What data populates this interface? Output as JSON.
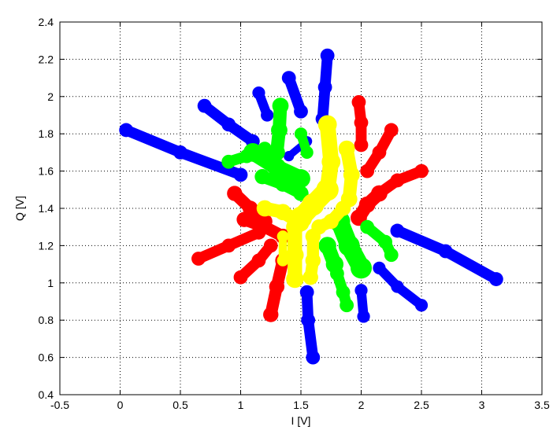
{
  "chart_data": {
    "type": "scatter",
    "title": "",
    "xlabel": "I [V]",
    "ylabel": "Q [V]",
    "xlim": [
      -0.5,
      3.5
    ],
    "ylim": [
      0.4,
      2.4
    ],
    "xticks": [
      -0.5,
      0,
      0.5,
      1,
      1.5,
      2,
      2.5,
      3,
      3.5
    ],
    "yticks": [
      0.4,
      0.6,
      0.8,
      1,
      1.2,
      1.4,
      1.6,
      1.8,
      2,
      2.2,
      2.4
    ],
    "xtick_labels": [
      "-0.5",
      "0",
      "0.5",
      "1",
      "1.5",
      "2",
      "2.5",
      "3",
      "3.5"
    ],
    "ytick_labels": [
      "0.4",
      "0.6",
      "0.8",
      "1",
      "1.2",
      "1.4",
      "1.6",
      "1.8",
      "2",
      "2.2",
      "2.4"
    ],
    "grid": true,
    "grid_style": "dotted",
    "series": [
      {
        "color": "#0000ff",
        "marker": "*",
        "strokes": [
          {
            "points": [
              [
                0.05,
                1.82
              ],
              [
                0.5,
                1.7
              ],
              [
                1.0,
                1.58
              ]
            ],
            "width": 0.09
          },
          {
            "points": [
              [
                0.7,
                1.95
              ],
              [
                0.9,
                1.85
              ],
              [
                1.1,
                1.76
              ]
            ],
            "width": 0.09
          },
          {
            "points": [
              [
                1.15,
                2.02
              ],
              [
                1.22,
                1.9
              ]
            ],
            "width": 0.08
          },
          {
            "points": [
              [
                1.4,
                2.1
              ],
              [
                1.5,
                1.92
              ]
            ],
            "width": 0.09
          },
          {
            "points": [
              [
                1.72,
                2.22
              ],
              [
                1.7,
                2.05
              ],
              [
                1.68,
                1.88
              ]
            ],
            "width": 0.09
          },
          {
            "points": [
              [
                2.3,
                1.28
              ],
              [
                2.7,
                1.17
              ],
              [
                3.12,
                1.02
              ]
            ],
            "width": 0.09
          },
          {
            "points": [
              [
                2.5,
                0.88
              ],
              [
                2.3,
                0.98
              ],
              [
                2.15,
                1.08
              ]
            ],
            "width": 0.08
          },
          {
            "points": [
              [
                2.02,
                0.82
              ],
              [
                2.0,
                0.96
              ]
            ],
            "width": 0.08
          },
          {
            "points": [
              [
                1.6,
                0.6
              ],
              [
                1.56,
                0.8
              ],
              [
                1.55,
                0.95
              ]
            ],
            "width": 0.09
          },
          {
            "points": [
              [
                1.4,
                1.68
              ],
              [
                1.55,
                1.76
              ]
            ],
            "width": 0.06
          }
        ]
      },
      {
        "color": "#ff0000",
        "marker": "*",
        "strokes": [
          {
            "points": [
              [
                1.98,
                1.97
              ],
              [
                2.0,
                1.86
              ],
              [
                2.0,
                1.74
              ]
            ],
            "width": 0.09
          },
          {
            "points": [
              [
                2.25,
                1.82
              ],
              [
                2.15,
                1.7
              ],
              [
                2.05,
                1.6
              ]
            ],
            "width": 0.09
          },
          {
            "points": [
              [
                2.5,
                1.6
              ],
              [
                2.3,
                1.55
              ],
              [
                2.15,
                1.48
              ]
            ],
            "width": 0.09
          },
          {
            "points": [
              [
                2.15,
                1.48
              ],
              [
                2.05,
                1.42
              ],
              [
                1.98,
                1.35
              ]
            ],
            "width": 0.11
          },
          {
            "points": [
              [
                0.95,
                1.48
              ],
              [
                1.08,
                1.4
              ],
              [
                1.2,
                1.33
              ]
            ],
            "width": 0.1
          },
          {
            "points": [
              [
                0.65,
                1.13
              ],
              [
                0.9,
                1.2
              ],
              [
                1.15,
                1.27
              ]
            ],
            "width": 0.09
          },
          {
            "points": [
              [
                1.0,
                1.03
              ],
              [
                1.15,
                1.12
              ],
              [
                1.25,
                1.2
              ]
            ],
            "width": 0.09
          },
          {
            "points": [
              [
                1.25,
                0.83
              ],
              [
                1.3,
                0.98
              ],
              [
                1.35,
                1.12
              ]
            ],
            "width": 0.1
          },
          {
            "points": [
              [
                1.03,
                1.34
              ],
              [
                1.2,
                1.3
              ],
              [
                1.35,
                1.25
              ]
            ],
            "width": 0.1
          }
        ]
      },
      {
        "color": "#00ff00",
        "marker": "*",
        "strokes": [
          {
            "points": [
              [
                0.9,
                1.65
              ],
              [
                1.05,
                1.68
              ],
              [
                1.2,
                1.72
              ]
            ],
            "width": 0.09
          },
          {
            "points": [
              [
                1.33,
                1.95
              ],
              [
                1.32,
                1.82
              ],
              [
                1.3,
                1.7
              ]
            ],
            "width": 0.11
          },
          {
            "points": [
              [
                1.1,
                1.7
              ],
              [
                1.3,
                1.62
              ],
              [
                1.5,
                1.56
              ]
            ],
            "width": 0.13
          },
          {
            "points": [
              [
                1.18,
                1.57
              ],
              [
                1.35,
                1.53
              ],
              [
                1.5,
                1.48
              ]
            ],
            "width": 0.1
          },
          {
            "points": [
              [
                1.5,
                1.8
              ],
              [
                1.55,
                1.7
              ]
            ],
            "width": 0.08
          },
          {
            "points": [
              [
                1.82,
                1.33
              ],
              [
                1.9,
                1.2
              ],
              [
                2.0,
                1.08
              ]
            ],
            "width": 0.15
          },
          {
            "points": [
              [
                1.8,
                1.05
              ],
              [
                1.85,
                0.95
              ],
              [
                1.88,
                0.88
              ]
            ],
            "width": 0.09
          },
          {
            "points": [
              [
                2.05,
                1.3
              ],
              [
                2.2,
                1.22
              ],
              [
                2.25,
                1.15
              ]
            ],
            "width": 0.09
          },
          {
            "points": [
              [
                1.72,
                1.2
              ],
              [
                1.78,
                1.1
              ]
            ],
            "width": 0.12
          }
        ]
      },
      {
        "color": "#ffff00",
        "marker": "*",
        "strokes": [
          {
            "points": [
              [
                1.72,
                1.85
              ],
              [
                1.75,
                1.65
              ],
              [
                1.72,
                1.5
              ]
            ],
            "width": 0.13
          },
          {
            "points": [
              [
                1.88,
                1.72
              ],
              [
                1.92,
                1.58
              ],
              [
                1.9,
                1.45
              ]
            ],
            "width": 0.11
          },
          {
            "points": [
              [
                1.72,
                1.5
              ],
              [
                1.6,
                1.42
              ],
              [
                1.5,
                1.35
              ]
            ],
            "width": 0.16
          },
          {
            "points": [
              [
                1.2,
                1.4
              ],
              [
                1.35,
                1.38
              ],
              [
                1.5,
                1.32
              ]
            ],
            "width": 0.11
          },
          {
            "points": [
              [
                1.45,
                1.3
              ],
              [
                1.45,
                1.15
              ],
              [
                1.45,
                1.02
              ]
            ],
            "width": 0.12
          },
          {
            "points": [
              [
                1.6,
                1.25
              ],
              [
                1.6,
                1.12
              ],
              [
                1.58,
                1.03
              ]
            ],
            "width": 0.1
          },
          {
            "points": [
              [
                1.85,
                1.4
              ],
              [
                1.75,
                1.33
              ],
              [
                1.65,
                1.3
              ]
            ],
            "width": 0.1
          },
          {
            "points": [
              [
                1.35,
                1.25
              ],
              [
                1.35,
                1.12
              ]
            ],
            "width": 0.07
          }
        ]
      }
    ]
  }
}
